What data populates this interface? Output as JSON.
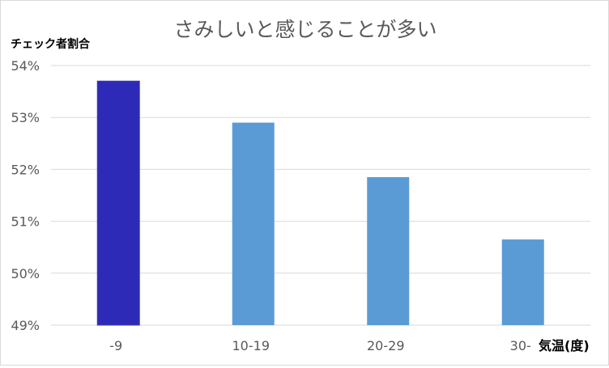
{
  "chart_data": {
    "type": "bar",
    "title": "さみしいと感じることが多い",
    "ylabel": "チェック者割合",
    "xlabel": "気温(度)",
    "categories": [
      "-9",
      "10-19",
      "20-29",
      "30-"
    ],
    "values": [
      53.7,
      52.9,
      51.85,
      50.65
    ],
    "ylim": [
      49,
      54
    ],
    "yticks": [
      "49%",
      "50%",
      "51%",
      "52%",
      "53%",
      "54%"
    ],
    "grid": true,
    "bar_colors": [
      "#2e2ab8",
      "#5b9bd5",
      "#5b9bd5",
      "#5b9bd5"
    ],
    "bar_border_color": "#3a3ab0",
    "gridline_color": "#d9d9d9",
    "text_color": "#595959"
  }
}
